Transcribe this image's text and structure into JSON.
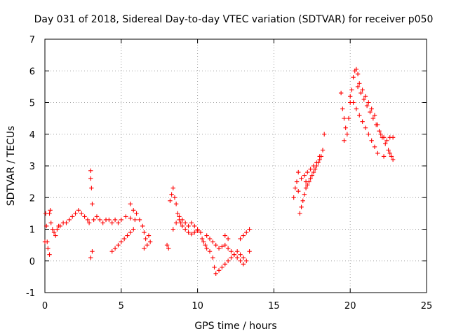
{
  "chart_data": {
    "type": "scatter",
    "title": "Day 031 of 2018, Sidereal Day-to-day VTEC variation (SDTVAR) for receiver p050",
    "xlabel": "GPS time / hours",
    "ylabel": "SDTVAR / TECUs",
    "xlim": [
      0,
      25
    ],
    "ylim": [
      -1,
      7
    ],
    "xticks": [
      0,
      5,
      10,
      15,
      20,
      25
    ],
    "yticks": [
      -1,
      0,
      1,
      2,
      3,
      4,
      5,
      6,
      7
    ],
    "x_tick_labels": [
      "0",
      "5",
      "10",
      "15",
      "20",
      "25"
    ],
    "y_tick_labels": [
      "-1",
      "0",
      "1",
      "2",
      "3",
      "4",
      "5",
      "6",
      "7"
    ],
    "grid": true,
    "marker": "+",
    "marker_color": "#ff0000",
    "series": [
      {
        "name": "SDTVAR",
        "points": [
          [
            0.0,
            0.6
          ],
          [
            0.05,
            1.5
          ],
          [
            0.1,
            1.1
          ],
          [
            0.15,
            0.6
          ],
          [
            0.2,
            0.4
          ],
          [
            0.3,
            0.2
          ],
          [
            0.3,
            1.5
          ],
          [
            0.35,
            1.6
          ],
          [
            0.4,
            1.2
          ],
          [
            0.5,
            1.0
          ],
          [
            0.6,
            0.9
          ],
          [
            0.7,
            0.8
          ],
          [
            0.8,
            1.0
          ],
          [
            0.9,
            1.1
          ],
          [
            1.0,
            1.1
          ],
          [
            1.2,
            1.2
          ],
          [
            1.4,
            1.2
          ],
          [
            1.6,
            1.3
          ],
          [
            1.8,
            1.4
          ],
          [
            2.0,
            1.5
          ],
          [
            2.2,
            1.6
          ],
          [
            2.4,
            1.5
          ],
          [
            2.6,
            1.4
          ],
          [
            2.8,
            1.3
          ],
          [
            2.9,
            1.2
          ],
          [
            3.0,
            2.85
          ],
          [
            3.0,
            2.6
          ],
          [
            3.05,
            2.3
          ],
          [
            3.1,
            1.8
          ],
          [
            3.0,
            0.1
          ],
          [
            3.1,
            0.3
          ],
          [
            3.2,
            1.3
          ],
          [
            3.4,
            1.4
          ],
          [
            3.6,
            1.3
          ],
          [
            3.8,
            1.2
          ],
          [
            4.0,
            1.3
          ],
          [
            4.2,
            1.3
          ],
          [
            4.4,
            1.2
          ],
          [
            4.6,
            1.3
          ],
          [
            4.8,
            1.2
          ],
          [
            4.4,
            0.3
          ],
          [
            4.6,
            0.4
          ],
          [
            4.8,
            0.5
          ],
          [
            5.0,
            0.6
          ],
          [
            5.2,
            0.7
          ],
          [
            5.4,
            0.8
          ],
          [
            5.6,
            0.9
          ],
          [
            5.8,
            1.0
          ],
          [
            5.0,
            1.3
          ],
          [
            5.3,
            1.4
          ],
          [
            5.6,
            1.35
          ],
          [
            5.9,
            1.3
          ],
          [
            5.6,
            1.8
          ],
          [
            5.8,
            1.6
          ],
          [
            6.0,
            1.5
          ],
          [
            6.2,
            1.3
          ],
          [
            6.4,
            1.1
          ],
          [
            6.5,
            0.9
          ],
          [
            6.6,
            0.7
          ],
          [
            6.7,
            0.5
          ],
          [
            6.8,
            0.8
          ],
          [
            6.5,
            0.4
          ],
          [
            6.9,
            0.6
          ],
          [
            8.0,
            0.5
          ],
          [
            8.1,
            0.4
          ],
          [
            8.2,
            1.9
          ],
          [
            8.3,
            2.1
          ],
          [
            8.4,
            2.3
          ],
          [
            8.5,
            2.0
          ],
          [
            8.6,
            1.8
          ],
          [
            8.7,
            1.5
          ],
          [
            8.8,
            1.3
          ],
          [
            8.9,
            1.2
          ],
          [
            9.0,
            1.1
          ],
          [
            9.2,
            1.0
          ],
          [
            9.4,
            0.9
          ],
          [
            9.6,
            0.85
          ],
          [
            9.8,
            0.9
          ],
          [
            10.0,
            0.95
          ],
          [
            8.4,
            1.0
          ],
          [
            8.6,
            1.2
          ],
          [
            8.8,
            1.4
          ],
          [
            9.0,
            1.3
          ],
          [
            9.2,
            1.2
          ],
          [
            9.4,
            1.1
          ],
          [
            9.6,
            1.2
          ],
          [
            9.8,
            1.1
          ],
          [
            10.0,
            1.0
          ],
          [
            10.2,
            0.9
          ],
          [
            10.3,
            0.7
          ],
          [
            10.4,
            0.6
          ],
          [
            10.5,
            0.5
          ],
          [
            10.6,
            0.4
          ],
          [
            10.8,
            0.3
          ],
          [
            11.0,
            0.1
          ],
          [
            11.1,
            -0.2
          ],
          [
            11.2,
            -0.4
          ],
          [
            11.4,
            -0.3
          ],
          [
            11.6,
            -0.2
          ],
          [
            11.8,
            -0.1
          ],
          [
            12.0,
            0.0
          ],
          [
            12.2,
            0.1
          ],
          [
            12.4,
            0.2
          ],
          [
            12.6,
            0.3
          ],
          [
            12.8,
            0.2
          ],
          [
            13.0,
            0.1
          ],
          [
            10.6,
            0.8
          ],
          [
            10.8,
            0.7
          ],
          [
            11.0,
            0.6
          ],
          [
            11.2,
            0.5
          ],
          [
            11.4,
            0.4
          ],
          [
            11.6,
            0.45
          ],
          [
            11.8,
            0.5
          ],
          [
            12.0,
            0.4
          ],
          [
            12.2,
            0.3
          ],
          [
            12.4,
            0.2
          ],
          [
            12.6,
            0.1
          ],
          [
            12.8,
            0.0
          ],
          [
            13.0,
            -0.1
          ],
          [
            13.2,
            0.0
          ],
          [
            13.4,
            0.3
          ],
          [
            13.0,
            0.8
          ],
          [
            13.2,
            0.9
          ],
          [
            13.4,
            1.0
          ],
          [
            12.8,
            0.7
          ],
          [
            11.8,
            0.8
          ],
          [
            12.0,
            0.7
          ],
          [
            16.3,
            2.0
          ],
          [
            16.4,
            2.3
          ],
          [
            16.5,
            2.5
          ],
          [
            16.6,
            2.2
          ],
          [
            16.7,
            1.5
          ],
          [
            16.8,
            1.7
          ],
          [
            16.9,
            1.9
          ],
          [
            17.0,
            2.1
          ],
          [
            17.1,
            2.3
          ],
          [
            17.2,
            2.4
          ],
          [
            17.3,
            2.5
          ],
          [
            17.4,
            2.6
          ],
          [
            17.5,
            2.7
          ],
          [
            17.6,
            2.8
          ],
          [
            17.7,
            2.9
          ],
          [
            17.8,
            3.0
          ],
          [
            17.9,
            3.1
          ],
          [
            18.0,
            3.2
          ],
          [
            18.1,
            3.3
          ],
          [
            18.2,
            3.5
          ],
          [
            18.3,
            4.0
          ],
          [
            16.8,
            2.6
          ],
          [
            17.0,
            2.7
          ],
          [
            17.2,
            2.8
          ],
          [
            17.4,
            2.9
          ],
          [
            17.6,
            3.0
          ],
          [
            17.8,
            3.1
          ],
          [
            18.0,
            3.3
          ],
          [
            16.6,
            2.8
          ],
          [
            17.1,
            2.5
          ],
          [
            19.4,
            5.3
          ],
          [
            19.5,
            4.8
          ],
          [
            19.6,
            4.5
          ],
          [
            19.7,
            4.2
          ],
          [
            19.6,
            3.8
          ],
          [
            19.8,
            4.0
          ],
          [
            19.9,
            4.5
          ],
          [
            20.0,
            5.0
          ],
          [
            20.1,
            5.4
          ],
          [
            20.2,
            5.8
          ],
          [
            20.3,
            6.0
          ],
          [
            20.4,
            6.05
          ],
          [
            20.5,
            5.9
          ],
          [
            20.6,
            5.6
          ],
          [
            20.8,
            5.4
          ],
          [
            21.0,
            5.2
          ],
          [
            21.2,
            5.0
          ],
          [
            21.4,
            4.8
          ],
          [
            21.6,
            4.6
          ],
          [
            21.8,
            4.3
          ],
          [
            22.0,
            4.0
          ],
          [
            22.2,
            3.9
          ],
          [
            22.4,
            3.8
          ],
          [
            22.6,
            3.9
          ],
          [
            20.0,
            5.2
          ],
          [
            20.2,
            5.0
          ],
          [
            20.4,
            4.8
          ],
          [
            20.6,
            4.6
          ],
          [
            20.8,
            4.4
          ],
          [
            21.0,
            4.2
          ],
          [
            21.2,
            4.0
          ],
          [
            21.4,
            3.8
          ],
          [
            21.6,
            3.6
          ],
          [
            21.8,
            3.4
          ],
          [
            20.5,
            5.5
          ],
          [
            20.7,
            5.3
          ],
          [
            20.9,
            5.1
          ],
          [
            21.1,
            4.9
          ],
          [
            21.3,
            4.7
          ],
          [
            21.5,
            4.5
          ],
          [
            21.7,
            4.3
          ],
          [
            21.9,
            4.1
          ],
          [
            22.1,
            3.9
          ],
          [
            22.3,
            3.7
          ],
          [
            22.5,
            3.5
          ],
          [
            22.7,
            3.3
          ],
          [
            22.8,
            3.2
          ],
          [
            22.8,
            3.9
          ],
          [
            22.6,
            3.4
          ],
          [
            22.2,
            3.3
          ]
        ]
      }
    ]
  }
}
